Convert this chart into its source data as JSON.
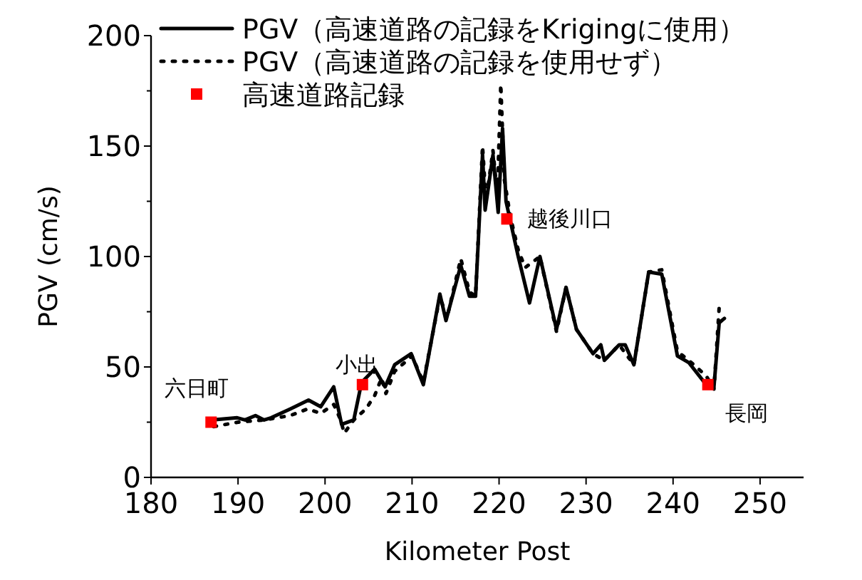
{
  "chart_data": {
    "type": "line",
    "xlabel": "Kilometer Post",
    "ylabel": "PGV (cm/s)",
    "xlim": [
      180,
      255
    ],
    "ylim": [
      0,
      200
    ],
    "xticks": [
      180,
      190,
      200,
      210,
      220,
      230,
      240,
      250
    ],
    "yticks": [
      0,
      {
        "value": 25,
        "label": null
      },
      50,
      {
        "value": 75,
        "label": null
      },
      100,
      {
        "value": 125,
        "label": null
      },
      150,
      {
        "value": 175,
        "label": null
      },
      200
    ],
    "legend": "top left",
    "series": [
      {
        "name": "PGV（高速道路の記録をKrigingに使用）",
        "line_style": "solid",
        "color": "#000000",
        "x": [
          186.9,
          189.9,
          190.8,
          192.0,
          193.0,
          193.8,
          196.0,
          198.1,
          199.5,
          201.0,
          201.9,
          203.3,
          204.2,
          205.7,
          206.9,
          208.0,
          209.9,
          211.3,
          213.2,
          213.9,
          215.6,
          216.6,
          217.3,
          218.1,
          218.4,
          219.3,
          219.9,
          220.4,
          220.8,
          222.2,
          223.5,
          224.7,
          226.6,
          227.7,
          228.9,
          230.8,
          231.7,
          232.1,
          233.8,
          234.5,
          235.5,
          237.2,
          238.7,
          240.5,
          241.8,
          244.0,
          244.7,
          245.3,
          245.9
        ],
        "values": [
          26,
          27,
          26,
          28,
          26,
          27,
          31,
          35,
          32,
          41,
          24,
          26,
          43,
          49,
          41,
          51,
          56,
          42,
          83,
          71,
          96,
          82,
          82,
          146,
          121,
          146,
          120,
          158,
          125,
          100,
          79,
          100,
          67,
          86,
          67,
          56,
          60,
          53,
          60,
          60,
          51,
          93,
          92,
          55,
          52,
          41,
          41,
          70,
          72
        ]
      },
      {
        "name": "PGV（高速道路の記録を使用せず）",
        "line_style": "dotted",
        "color": "#000000",
        "x": [
          187.2,
          190,
          193,
          196,
          198,
          199.5,
          201,
          201.8,
          202.2,
          203.3,
          204.7,
          205.7,
          206.5,
          207,
          208,
          210,
          211.3,
          213.2,
          214,
          215.6,
          216.6,
          217.3,
          218.1,
          218.5,
          219.3,
          219.8,
          220.2,
          220.6,
          221.3,
          222.2,
          223,
          224.7,
          226.6,
          227.7,
          228.9,
          230.8,
          232.1,
          233.8,
          235.5,
          237.2,
          238.7,
          240.5,
          241.8,
          243.8,
          244.7,
          245.3
        ],
        "values": [
          23,
          25,
          26,
          28,
          31,
          29,
          33,
          26,
          20,
          26,
          31,
          37,
          45,
          38,
          48,
          55,
          43,
          82,
          72,
          99,
          84,
          82,
          150,
          125,
          148,
          128,
          178,
          135,
          118,
          103,
          95,
          100,
          66,
          86,
          67,
          56,
          53,
          60,
          51,
          93,
          94,
          57,
          53,
          46,
          40,
          77
        ]
      },
      {
        "name": "高速道路記録",
        "type": "scatter",
        "marker": "square",
        "color": "#ff0000",
        "x": [
          186.9,
          204.3,
          220.9,
          244.0
        ],
        "values": [
          25,
          42,
          117,
          42
        ]
      }
    ],
    "annotations": [
      {
        "text": "六日町",
        "x": 186.9,
        "y": 25
      },
      {
        "text": "小出",
        "x": 204.3,
        "y": 42
      },
      {
        "text": "越後川口",
        "x": 220.9,
        "y": 117
      },
      {
        "text": "長岡",
        "x": 244.0,
        "y": 42
      }
    ]
  }
}
